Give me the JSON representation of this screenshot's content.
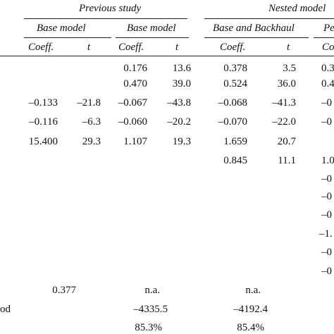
{
  "header": {
    "group_previous": "Previous study",
    "group_nested": "Nested model",
    "col_base_model_1": "Base model",
    "col_base_model_2": "Base model",
    "col_base_backhaul": "Base and Backhaul",
    "col_pe": "Pe",
    "sub_coeff_1": "Coeff.",
    "sub_t_1": "t",
    "sub_coeff_2": "Coeff.",
    "sub_t_2": "t",
    "sub_coeff_3": "Coeff.",
    "sub_t_3": "t",
    "sub_coeff_4": "Co"
  },
  "rows": [
    {
      "c1": "",
      "t1": "",
      "c2": "0.176",
      "t2": "13.6",
      "c3": "0.378",
      "t3": "3.5",
      "c4": "0.3"
    },
    {
      "c1": "",
      "t1": "",
      "c2": "0.470",
      "t2": "39.0",
      "c3": "0.524",
      "t3": "36.0",
      "c4": "0.4"
    },
    {
      "c1": "–0.133",
      "t1": "–21.8",
      "c2": "–0.067",
      "t2": "–43.8",
      "c3": "–0.068",
      "t3": "–41.3",
      "c4": "–0"
    },
    {
      "c1": "–0.116",
      "t1": "–6.3",
      "c2": "–0.060",
      "t2": "–20.2",
      "c3": "–0.070",
      "t3": "–22.0",
      "c4": "–0"
    },
    {
      "c1": "15.400",
      "t1": "29.3",
      "c2": "1.107",
      "t2": "19.3",
      "c3": "1.659",
      "t3": "20.7",
      "c4": ""
    },
    {
      "c1": "",
      "t1": "",
      "c2": "",
      "t2": "",
      "c3": "0.845",
      "t3": "11.1",
      "c4": "1.0"
    },
    {
      "c1": "",
      "t1": "",
      "c2": "",
      "t2": "",
      "c3": "",
      "t3": "",
      "c4": "–0"
    },
    {
      "c1": "",
      "t1": "",
      "c2": "",
      "t2": "",
      "c3": "",
      "t3": "",
      "c4": "–0"
    },
    {
      "c1": "",
      "t1": "",
      "c2": "",
      "t2": "",
      "c3": "",
      "t3": "",
      "c4": "–0"
    },
    {
      "c1": "",
      "t1": "",
      "c2": "",
      "t2": "",
      "c3": "",
      "t3": "",
      "c4": "–1."
    },
    {
      "c1": "",
      "t1": "",
      "c2": "",
      "t2": "",
      "c3": "",
      "t3": "",
      "c4": "–0"
    },
    {
      "c1": "",
      "t1": "",
      "c2": "",
      "t2": "",
      "c3": "",
      "t3": "",
      "c4": "–0"
    }
  ],
  "footer": [
    {
      "label": "",
      "v1": "0.377",
      "v2": "n.a.",
      "v3": "n.a."
    },
    {
      "label": "od",
      "v1": "",
      "v2": "–4335.5",
      "v3": "–4192.4"
    },
    {
      "label": "",
      "v1": "",
      "v2": "85.3%",
      "v3": "85.4%"
    }
  ]
}
